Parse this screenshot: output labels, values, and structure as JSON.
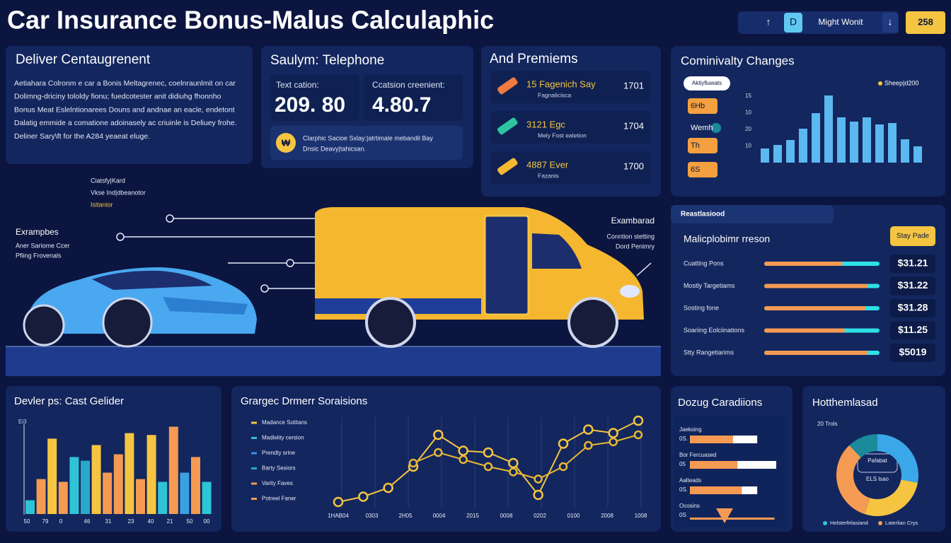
{
  "header": {
    "title": "Car Insurance Bonus-Malus Calculaphic",
    "controls": [
      "↑",
      "D",
      "Might Wonit",
      "↓"
    ],
    "badge": "258"
  },
  "intro": {
    "title": "Deliver Centaugrenent",
    "lines": [
      "Aetiahara Colronm e car a Bonis Meltagrenec, coelnraunlmit on car",
      "Dolimng-driciny tololdy fionu; fuedcotester anit didiuhg fhonnho",
      "Bonus Meat Eslelntionarees Douns and andnae an eacle, endetont",
      "Dalatig emmide a comatione adoinasely ac criuinle is Deliuey frohe.",
      "Deliner Sary\\ft for the A284 yeaeat eluge."
    ]
  },
  "telephone": {
    "title": "Saulym: Telephone",
    "stats": [
      {
        "label": "Text cation:",
        "value": "209. 80"
      },
      {
        "label": "Ccatsion creenient:",
        "value": "4.80.7"
      }
    ],
    "icon": "₩",
    "note": [
      "Clarphic Sacioe Sxlay:|atrtimale mebandil Bay",
      "Dnsic Deavy|tahicsan."
    ]
  },
  "premiums": {
    "title": "And Premiems",
    "items": [
      {
        "name": "15 Fagenich Say",
        "sub": "Fagnalicisca",
        "value": "1701"
      },
      {
        "name": "3121 Egc",
        "sub": "Mely Fost ealetion",
        "value": "1704"
      },
      {
        "name": "4887 Ever",
        "sub": "Fazanis",
        "value": "1700"
      }
    ]
  },
  "changes": {
    "title": "Cominivalty Changes",
    "pill": "Aktiyfiuwats",
    "legend": "Sheep|d200",
    "side": [
      "6Hb",
      "Wemh",
      "Th",
      "6S"
    ],
    "axis_labels": [
      "15",
      "10",
      "20",
      "10"
    ],
    "ylim": [
      0,
      100
    ],
    "bars": [
      20,
      25,
      32,
      48,
      70,
      95,
      64,
      58,
      64,
      54,
      56,
      33,
      23
    ],
    "color": "#5cb8f0"
  },
  "hero": {
    "left": [
      "Ciatsfy|Kard",
      "Vkse Ind|dbeanotor",
      "Isitanior"
    ],
    "examples": {
      "title": "Exrampbes",
      "lines": [
        "Aner Sariome Ccer",
        "Pfiing Frovenals"
      ]
    },
    "right": {
      "title": "Exambarad",
      "lines": [
        "Conntion stetting",
        "Dord Penimry"
      ]
    }
  },
  "rates": {
    "tab": "Reastlasiood",
    "title": "Malicplobimr rreson",
    "button": "Stay Pade",
    "rows": [
      {
        "name": "Cuatting Pons",
        "progress": 68,
        "value": "$31.21"
      },
      {
        "name": "Mostly Targetiams",
        "progress": 90,
        "value": "$31.22"
      },
      {
        "name": "Sosting fone",
        "progress": 88,
        "value": "$31.28"
      },
      {
        "name": "Soariing Eolciinations",
        "progress": 70,
        "value": "$11.25"
      },
      {
        "name": "Stty Rangetiarims",
        "progress": 90,
        "value": "$5019"
      }
    ],
    "xlim": [
      0,
      100
    ]
  },
  "cost": {
    "title": "Devler ps: Cast Gelider",
    "axis_title": "Ei3",
    "ylim": [
      0,
      100
    ],
    "values": [
      15,
      38,
      82,
      35,
      62,
      58,
      75,
      45,
      65,
      88,
      38,
      86,
      35,
      95,
      45,
      62,
      35
    ],
    "colors": [
      "#2ec4d6",
      "#f59a52",
      "#f5c542",
      "#f59a52",
      "#2ec4d6",
      "#2aa8c8",
      "#f5c542",
      "#f59a52",
      "#f59a52",
      "#f5c542",
      "#f59a52",
      "#f5c542",
      "#2ec4d6",
      "#f59a52",
      "#3aa0e0",
      "#f59a52",
      "#2ec4d6"
    ],
    "x_labels": [
      "50",
      "79",
      "0",
      "46",
      "31",
      "23",
      "40",
      "21",
      "50",
      "00"
    ]
  },
  "trend": {
    "title": "Grargec Drmerr Soraisions",
    "legend": [
      {
        "name": "Madance Sotitans",
        "color": "#f5c542"
      },
      {
        "name": "Madlelity cersion",
        "color": "#2ec4d6"
      },
      {
        "name": "Prendty srine",
        "color": "#3a8ee8"
      },
      {
        "name": "Barty Sesiors",
        "color": "#2aa8c8"
      },
      {
        "name": "Varity Faves",
        "color": "#f59a52"
      },
      {
        "name": "Potreel Faner",
        "color": "#f59a52"
      }
    ],
    "ylim": [
      0,
      100
    ],
    "series": [
      {
        "color": "#f5c542",
        "values": [
          4,
          10,
          20,
          44,
          80,
          62,
          60,
          48,
          12,
          70,
          86,
          82,
          96
        ]
      },
      {
        "color": "#e8b830",
        "values": [
          null,
          null,
          null,
          48,
          60,
          52,
          44,
          38,
          30,
          44,
          68,
          72,
          80
        ]
      }
    ],
    "x_labels": [
      "1HAB04",
      "0303",
      "2H05",
      "0004",
      "2015",
      "0008",
      "0202",
      "0100",
      "2008",
      "1008"
    ]
  },
  "conditions": {
    "title": "Dozug Caradiions",
    "xlim": [
      0,
      100
    ],
    "rows": [
      {
        "label": "Jaeksing",
        "sub": "0S.",
        "values": [
          50,
          28
        ]
      },
      {
        "label": "Bor Fercuased",
        "sub": "05",
        "values": [
          55,
          45
        ]
      },
      {
        "label": "Aalteads",
        "sub": "0S.",
        "values": [
          60,
          18
        ]
      },
      {
        "label": "Ocosins",
        "sub": "0S",
        "values": [
          98,
          0
        ]
      }
    ]
  },
  "share": {
    "title": "Hotthemlasad",
    "note": "20 Trols",
    "center": [
      "Pafabat",
      "ELS lsao"
    ],
    "segments": [
      {
        "value": 28,
        "color": "#3aa8e8"
      },
      {
        "value": 27,
        "color": "#f5c542"
      },
      {
        "value": 33,
        "color": "#f59a52"
      },
      {
        "value": 12,
        "color": "#1b8a9a"
      }
    ],
    "legend": [
      {
        "name": "Helsterfelasiand",
        "color": "#2ec4d6"
      },
      {
        "name": "Laterlian Crys",
        "color": "#f59a52"
      }
    ]
  }
}
